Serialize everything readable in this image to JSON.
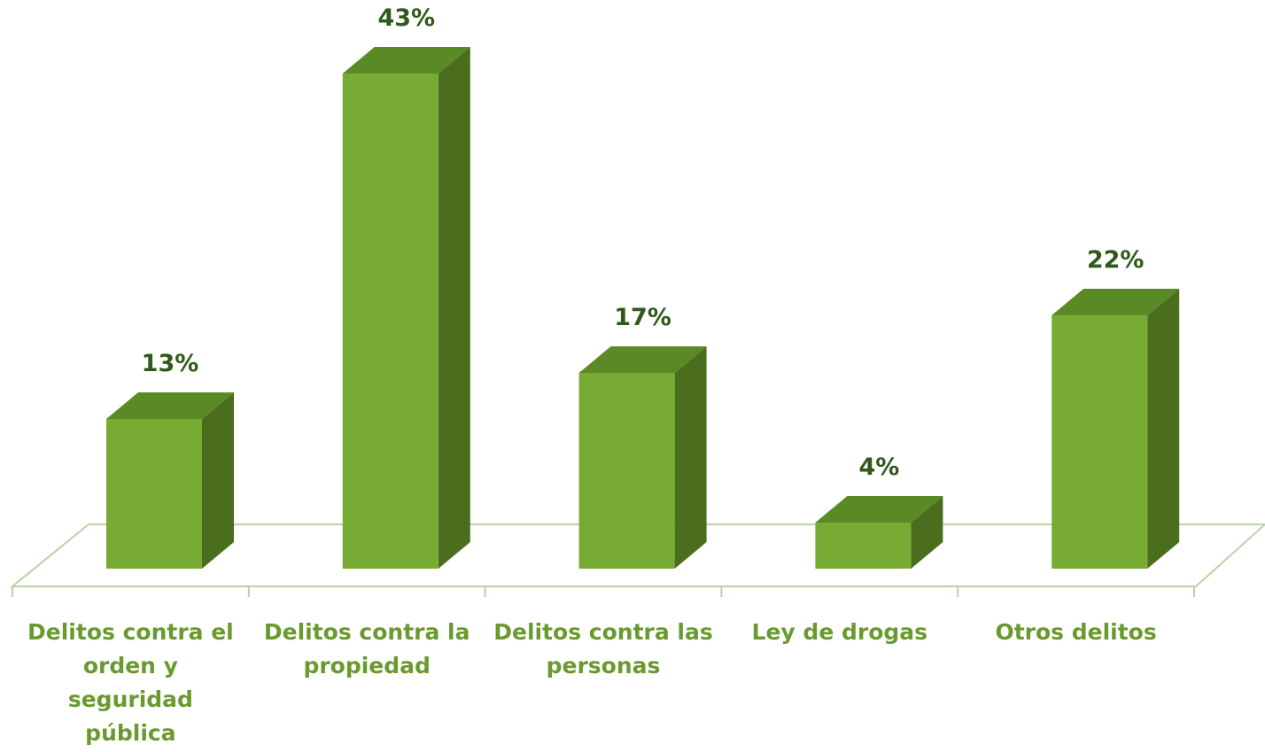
{
  "chart_data": {
    "type": "bar3d",
    "categories": [
      "Delitos contra el orden y seguridad pública",
      "Delitos contra la propiedad",
      "Delitos contra las personas",
      "Ley de drogas",
      "Otros delitos"
    ],
    "values": [
      13,
      43,
      17,
      4,
      22
    ],
    "value_labels": [
      "13%",
      "43%",
      "17%",
      "4%",
      "22%"
    ],
    "color": "#78ab33"
  }
}
